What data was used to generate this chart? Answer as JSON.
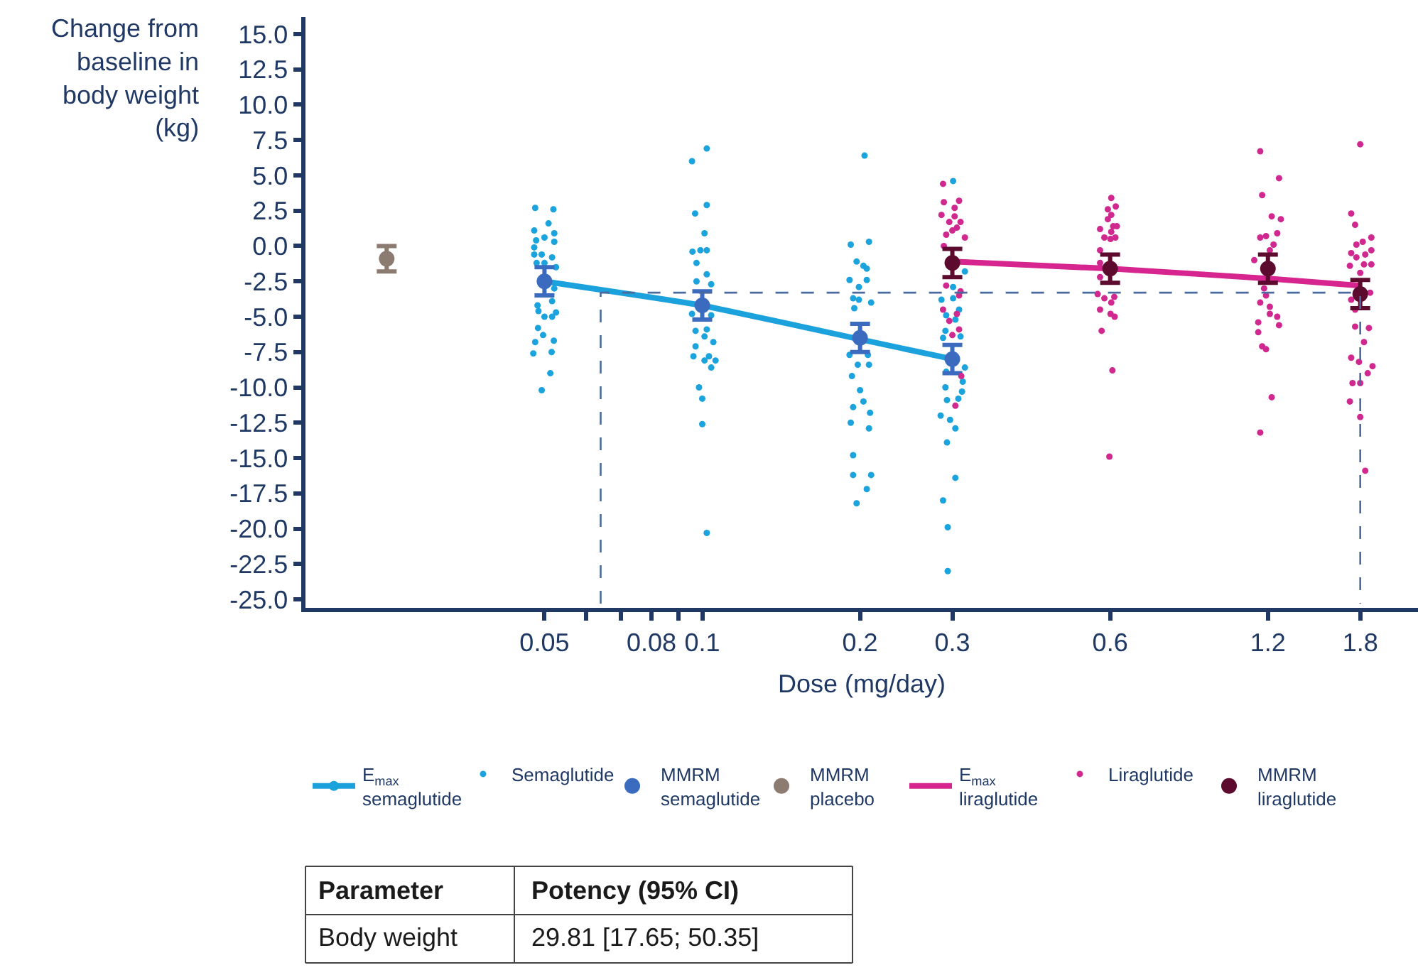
{
  "chart_data": {
    "type": "scatter",
    "ylabel": "Change from baseline in body weight (kg)",
    "xlabel": "Dose (mg/day)",
    "log": "x",
    "legend": "bottom",
    "xlim": [
      0.0175,
      2.32
    ],
    "xticks": [
      0.05,
      {
        "value": 0.06,
        "label": null
      },
      {
        "value": 0.07,
        "label": null
      },
      0.08,
      {
        "value": 0.09,
        "label": null
      },
      0.1,
      0.2,
      0.3,
      0.6,
      1.2,
      1.8
    ],
    "ylim": [
      -25.6,
      16.2
    ],
    "yticks": [
      {
        "value": 15,
        "label": "15.0"
      },
      12.5,
      {
        "value": 10,
        "label": "10.0"
      },
      7.5,
      {
        "value": 5,
        "label": "5.0"
      },
      2.5,
      {
        "value": 0,
        "label": "0.0"
      },
      -2.5,
      {
        "value": -5,
        "label": "-5.0"
      },
      -7.5,
      {
        "value": -10,
        "label": "-10.0"
      },
      -12.5,
      {
        "value": -15,
        "label": "-15.0"
      },
      -17.5,
      {
        "value": -20,
        "label": "-20.0"
      },
      -22.5,
      {
        "value": -25,
        "label": "-25.0"
      }
    ],
    "series": [
      {
        "name": "E$_{max}$ semaglutide",
        "type": "line",
        "color": "#1ba1db",
        "marker": "circle",
        "line_style": "solid",
        "x": [
          0.05,
          0.1,
          0.2,
          0.3
        ],
        "values": [
          -2.5,
          -4.2,
          -6.6,
          -8.0
        ]
      },
      {
        "name": "Semaglutide",
        "color": "#1aa3dc",
        "marker": "circle",
        "x": [
          0.048,
          0.052,
          0.0509,
          0.0478,
          0.0522,
          0.05,
          0.0482,
          0.0522,
          0.0478,
          0.0478,
          0.0494,
          0.0517,
          0.0483,
          0.05,
          0.0526,
          0.0522,
          0.0517,
          0.0485,
          0.0487,
          0.0526,
          0.05,
          0.0517,
          0.0486,
          0.0497,
          0.0521,
          0.048,
          0.0516,
          0.0476,
          0.0513,
          0.0494,
          0.102,
          0.0956,
          0.102,
          0.0969,
          0.101,
          0.0958,
          0.0992,
          0.102,
          0.0975,
          0.102,
          0.0975,
          0.104,
          0.0956,
          0.104,
          0.0971,
          0.102,
          0.101,
          0.105,
          0.0971,
          0.0962,
          0.103,
          0.106,
          0.101,
          0.104,
          0.0986,
          0.1,
          0.1,
          0.102,
          0.204,
          0.192,
          0.208,
          0.197,
          0.203,
          0.206,
          0.191,
          0.206,
          0.199,
          0.194,
          0.199,
          0.21,
          0.195,
          0.191,
          0.207,
          0.198,
          0.208,
          0.193,
          0.2,
          0.203,
          0.194,
          0.209,
          0.192,
          0.208,
          0.194,
          0.194,
          0.21,
          0.206,
          0.197,
          0.301,
          0.317,
          0.301,
          0.286,
          0.301,
          0.309,
          0.292,
          0.304,
          0.291,
          0.311,
          0.288,
          0.317,
          0.292,
          0.314,
          0.291,
          0.313,
          0.293,
          0.308,
          0.285,
          0.297,
          0.304,
          0.293,
          0.304,
          0.288,
          0.294,
          0.294
        ],
        "values": [
          2.7,
          2.6,
          1.6,
          1.1,
          0.9,
          0.6,
          0.4,
          0.3,
          -0.1,
          -0.6,
          -0.6,
          -0.8,
          -1.2,
          -1.2,
          -1.5,
          -3.0,
          -3.9,
          -4.2,
          -4.6,
          -4.7,
          -5.0,
          -5.0,
          -5.8,
          -6.3,
          -6.7,
          -6.8,
          -7.5,
          -7.6,
          -9.0,
          -10.2,
          6.9,
          6.0,
          2.9,
          2.3,
          0.9,
          -0.4,
          -0.3,
          -0.3,
          -1.2,
          -2.0,
          -2.5,
          -2.7,
          -4.8,
          -4.9,
          -6.0,
          -5.9,
          -6.4,
          -6.8,
          -7.1,
          -7.8,
          -7.8,
          -8.1,
          -8.1,
          -8.6,
          -10.0,
          -10.8,
          -12.6,
          -20.3,
          6.4,
          0.1,
          0.3,
          -1.1,
          -1.4,
          -1.6,
          -2.4,
          -2.4,
          -2.9,
          -3.7,
          -3.8,
          -4.0,
          -4.4,
          -7.7,
          -7.7,
          -8.4,
          -8.4,
          -9.2,
          -10.2,
          -11.0,
          -11.4,
          -11.8,
          -12.5,
          -12.9,
          -14.8,
          -16.2,
          -16.2,
          -17.2,
          -18.2,
          4.6,
          -1.8,
          -2.9,
          -3.8,
          -3.7,
          -4.5,
          -4.9,
          -5.2,
          -6.0,
          -6.4,
          -6.5,
          -8.6,
          -8.9,
          -9.6,
          -10.0,
          -10.3,
          -10.9,
          -10.8,
          -12.0,
          -12.3,
          -12.9,
          -13.9,
          -16.4,
          -18.0,
          -19.9,
          -23.0
        ]
      },
      {
        "name": "MMRM semaglutide",
        "color": "#3a6bbf",
        "x": [
          0.05,
          0.1,
          0.2,
          0.3
        ],
        "values": [
          -2.5,
          -4.2,
          -6.5,
          -8.0
        ],
        "errors": [
          1.0,
          1.0,
          1.0,
          1.0
        ]
      },
      {
        "name": "MMRM placebo",
        "color": "#8c7b70",
        "x": [
          0.025
        ],
        "values": [
          -0.9
        ],
        "errors": [
          0.9
        ]
      },
      {
        "name": "E$_{max}$ liraglutide",
        "type": "line",
        "color": "#d6258f",
        "line_style": "solid",
        "x": [
          0.3,
          0.6,
          1.2,
          1.8
        ],
        "values": [
          -1.1,
          -1.6,
          -2.3,
          -2.8
        ]
      },
      {
        "name": "Liraglutide",
        "color": "#d0288f",
        "marker": "circle",
        "x": [
          0.288,
          0.289,
          0.309,
          0.303,
          0.286,
          0.303,
          0.296,
          0.311,
          0.306,
          0.292,
          0.317,
          0.3,
          0.289,
          0.292,
          0.311,
          0.309,
          0.288,
          0.306,
          0.296,
          0.3,
          0.309,
          0.312,
          0.304,
          0.603,
          0.615,
          0.594,
          0.603,
          0.594,
          0.608,
          0.618,
          0.574,
          0.603,
          0.585,
          0.601,
          0.614,
          0.574,
          0.574,
          0.574,
          0.568,
          0.585,
          0.611,
          0.603,
          0.574,
          0.601,
          0.612,
          0.578,
          0.606,
          0.598,
          1.16,
          1.26,
          1.17,
          1.22,
          1.27,
          1.16,
          1.19,
          1.25,
          1.23,
          1.21,
          1.13,
          1.18,
          1.19,
          1.16,
          1.21,
          1.21,
          1.25,
          1.15,
          1.26,
          1.15,
          1.17,
          1.19,
          1.22,
          1.16,
          1.8,
          1.73,
          1.76,
          1.82,
          1.89,
          1.77,
          1.84,
          1.89,
          1.73,
          1.77,
          1.72,
          1.83,
          1.89,
          1.8,
          1.88,
          1.73,
          1.76,
          1.76,
          1.87,
          1.83,
          1.73,
          1.79,
          1.9,
          1.86,
          1.74,
          1.8,
          1.72,
          1.8,
          1.84
        ],
        "values": [
          4.4,
          3.1,
          3.2,
          2.7,
          2.2,
          2.1,
          1.7,
          1.7,
          1.3,
          0.8,
          0.6,
          1.1,
          0.0,
          -2.8,
          -3.2,
          -3.5,
          -4.5,
          -4.8,
          -5.3,
          -6.3,
          -5.9,
          -9.2,
          -11.3,
          3.4,
          2.8,
          2.6,
          2.2,
          1.9,
          1.4,
          1.4,
          1.2,
          1.0,
          0.6,
          0.5,
          0.6,
          -0.3,
          -1.2,
          -2.2,
          -3.4,
          -3.7,
          -3.6,
          -4.0,
          -4.5,
          -4.8,
          -5.0,
          -6.0,
          -8.8,
          -14.9,
          6.7,
          4.8,
          3.6,
          2.1,
          1.9,
          0.6,
          0.7,
          0.9,
          0.1,
          -0.3,
          -1.0,
          -3.0,
          -3.5,
          -4.0,
          -4.3,
          -4.8,
          -5.0,
          -5.4,
          -5.6,
          -6.1,
          -7.1,
          -7.3,
          -10.7,
          -13.2,
          7.2,
          2.3,
          1.5,
          0.3,
          0.6,
          0.1,
          -0.6,
          -0.3,
          -0.5,
          -0.8,
          -1.4,
          -1.3,
          -1.3,
          -1.9,
          -3.3,
          -3.8,
          -4.5,
          -5.7,
          -5.8,
          -6.8,
          -7.9,
          -8.2,
          -8.5,
          -9.0,
          -9.7,
          -9.7,
          -11.0,
          -12.1,
          -15.9
        ]
      },
      {
        "name": "MMRM liraglutide",
        "color": "#5c0a2e",
        "x": [
          0.3,
          0.6,
          1.2,
          1.8
        ],
        "values": [
          -1.2,
          -1.6,
          -1.6,
          -3.4
        ],
        "errors": [
          1.0,
          1.0,
          1.0,
          1.0
        ]
      },
      {
        "type": "line",
        "color": "#4a6a9e",
        "line_style": "dashed",
        "x": [
          0.064,
          0.064,
          1.8,
          1.8
        ],
        "values": [
          -25.3,
          -3.3,
          -3.3,
          -25.3
        ]
      }
    ],
    "annotations": [
      "Parameter",
      "Potency (95% CI)",
      "Body weight",
      "29.81 [17.65; 50.35]"
    ]
  }
}
